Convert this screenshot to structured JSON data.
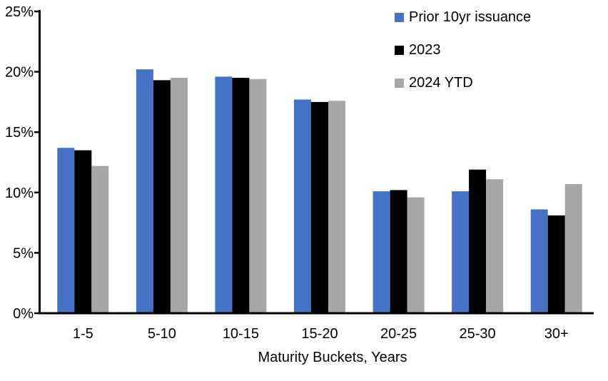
{
  "chart_data": {
    "type": "bar",
    "title": "",
    "xlabel": "Maturity Buckets, Years",
    "ylabel": "",
    "categories": [
      "1-5",
      "5-10",
      "10-15",
      "15-20",
      "20-25",
      "25-30",
      "30+"
    ],
    "series": [
      {
        "name": "Prior 10yr issuance",
        "color": "#4472C4",
        "values": [
          13.7,
          20.2,
          19.6,
          17.7,
          10.1,
          10.1,
          8.6
        ]
      },
      {
        "name": "2023",
        "color": "#000000",
        "values": [
          13.5,
          19.3,
          19.5,
          17.5,
          10.2,
          11.9,
          8.1
        ]
      },
      {
        "name": "2024 YTD",
        "color": "#A6A6A6",
        "values": [
          12.2,
          19.5,
          19.4,
          17.6,
          9.6,
          11.1,
          10.7
        ]
      }
    ],
    "y_axis": {
      "min": 0,
      "max": 25,
      "step": 5,
      "tick_labels": [
        "0%",
        "5%",
        "10%",
        "15%",
        "20%",
        "25%"
      ]
    },
    "legend_position": "top-right",
    "grid": false,
    "axis_color": "#000000",
    "background_color": "#FFFFFF"
  }
}
